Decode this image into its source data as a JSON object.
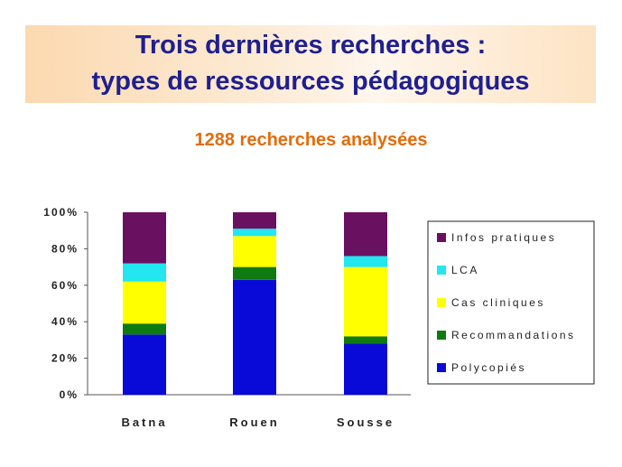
{
  "header": {
    "title_line1": "Trois dernières recherches :",
    "title_line2": "types de ressources pédagogiques",
    "subtitle": "1288 recherches analysées"
  },
  "chart_data": {
    "type": "bar",
    "stacked": true,
    "categories": [
      "Batna",
      "Rouen",
      "Sousse"
    ],
    "series": [
      {
        "name": "Polycopiés",
        "color": "#0a0ad8",
        "values": [
          33,
          63,
          28
        ]
      },
      {
        "name": "Recommandations",
        "color": "#0f7a0f",
        "values": [
          6,
          7,
          4
        ]
      },
      {
        "name": "Cas cliniques",
        "color": "#ffff00",
        "values": [
          23,
          17,
          38
        ]
      },
      {
        "name": "LCA",
        "color": "#22e6f0",
        "values": [
          10,
          4,
          6
        ]
      },
      {
        "name": "Infos pratiques",
        "color": "#6a1060",
        "values": [
          28,
          9,
          24
        ]
      }
    ],
    "ylim": [
      0,
      100
    ],
    "yticks": [
      "0%",
      "20%",
      "40%",
      "60%",
      "80%",
      "100%"
    ],
    "legend": {
      "position": "right",
      "entries": [
        "Infos pratiques",
        "LCA",
        "Cas cliniques",
        "Recommandations",
        "Polycopiés"
      ]
    },
    "grid": false
  }
}
